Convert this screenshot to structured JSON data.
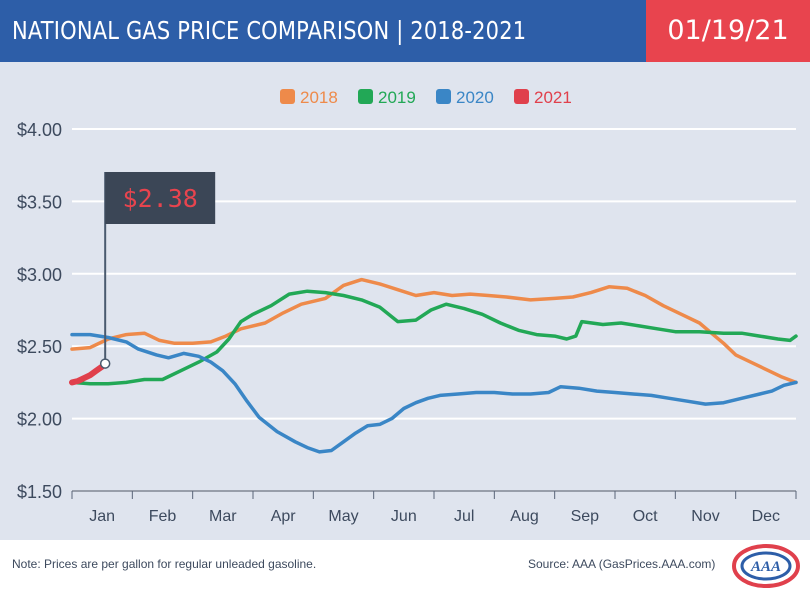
{
  "header": {
    "title": "NATIONAL GAS PRICE COMPARISON | 2018-2021",
    "date": "01/19/21"
  },
  "footer": {
    "note": "Note: Prices are per gallon for regular unleaded gasoline.",
    "source": "Source: AAA (GasPrices.AAA.com)",
    "logo_text": "AAA"
  },
  "colors": {
    "banner": "#2d5ea8",
    "date_box": "#e8444e",
    "panel": "#dfe4ee",
    "2018": "#ee8a4a",
    "2019": "#22a856",
    "2020": "#3a86c6",
    "2021": "#e0404c"
  },
  "chart_data": {
    "type": "line",
    "title": "",
    "xlabel": "",
    "ylabel": "",
    "ylim": [
      1.5,
      4.0
    ],
    "xlim": [
      0,
      12
    ],
    "grid": true,
    "legend_position": "top-center",
    "x_ticks": [
      "Jan",
      "Feb",
      "Mar",
      "Apr",
      "May",
      "Jun",
      "Jul",
      "Aug",
      "Sep",
      "Oct",
      "Nov",
      "Dec"
    ],
    "y_ticks": [
      "$1.50",
      "$2.00",
      "$2.50",
      "$3.00",
      "$3.50",
      "$4.00"
    ],
    "y_tick_values": [
      1.5,
      2.0,
      2.5,
      3.0,
      3.5,
      4.0
    ],
    "callout": {
      "label": "$2.38",
      "x": 0.55,
      "y": 2.38
    },
    "series": [
      {
        "name": "2018",
        "color": "#ee8a4a",
        "points": [
          [
            0,
            2.48
          ],
          [
            0.3,
            2.49
          ],
          [
            0.6,
            2.55
          ],
          [
            0.9,
            2.58
          ],
          [
            1.2,
            2.59
          ],
          [
            1.45,
            2.54
          ],
          [
            1.7,
            2.52
          ],
          [
            2.0,
            2.52
          ],
          [
            2.3,
            2.53
          ],
          [
            2.55,
            2.57
          ],
          [
            2.8,
            2.62
          ],
          [
            3.2,
            2.66
          ],
          [
            3.5,
            2.73
          ],
          [
            3.8,
            2.79
          ],
          [
            4.2,
            2.83
          ],
          [
            4.5,
            2.92
          ],
          [
            4.8,
            2.96
          ],
          [
            5.1,
            2.93
          ],
          [
            5.4,
            2.89
          ],
          [
            5.7,
            2.85
          ],
          [
            6.0,
            2.87
          ],
          [
            6.3,
            2.85
          ],
          [
            6.6,
            2.86
          ],
          [
            6.9,
            2.85
          ],
          [
            7.2,
            2.84
          ],
          [
            7.6,
            2.82
          ],
          [
            8.0,
            2.83
          ],
          [
            8.3,
            2.84
          ],
          [
            8.6,
            2.87
          ],
          [
            8.9,
            2.91
          ],
          [
            9.2,
            2.9
          ],
          [
            9.5,
            2.85
          ],
          [
            9.8,
            2.78
          ],
          [
            10.1,
            2.72
          ],
          [
            10.4,
            2.66
          ],
          [
            10.6,
            2.59
          ],
          [
            10.8,
            2.52
          ],
          [
            11.0,
            2.44
          ],
          [
            11.3,
            2.38
          ],
          [
            11.55,
            2.33
          ],
          [
            11.75,
            2.29
          ],
          [
            12.0,
            2.25
          ]
        ]
      },
      {
        "name": "2019",
        "color": "#22a856",
        "points": [
          [
            0,
            2.25
          ],
          [
            0.3,
            2.24
          ],
          [
            0.6,
            2.24
          ],
          [
            0.9,
            2.25
          ],
          [
            1.2,
            2.27
          ],
          [
            1.5,
            2.27
          ],
          [
            1.8,
            2.33
          ],
          [
            2.1,
            2.39
          ],
          [
            2.4,
            2.46
          ],
          [
            2.6,
            2.55
          ],
          [
            2.8,
            2.67
          ],
          [
            3.0,
            2.72
          ],
          [
            3.3,
            2.78
          ],
          [
            3.6,
            2.86
          ],
          [
            3.9,
            2.88
          ],
          [
            4.2,
            2.87
          ],
          [
            4.5,
            2.85
          ],
          [
            4.8,
            2.82
          ],
          [
            5.1,
            2.77
          ],
          [
            5.4,
            2.67
          ],
          [
            5.7,
            2.68
          ],
          [
            5.95,
            2.75
          ],
          [
            6.2,
            2.79
          ],
          [
            6.5,
            2.76
          ],
          [
            6.8,
            2.72
          ],
          [
            7.1,
            2.66
          ],
          [
            7.4,
            2.61
          ],
          [
            7.7,
            2.58
          ],
          [
            8.0,
            2.57
          ],
          [
            8.2,
            2.55
          ],
          [
            8.35,
            2.57
          ],
          [
            8.45,
            2.67
          ],
          [
            8.8,
            2.65
          ],
          [
            9.1,
            2.66
          ],
          [
            9.4,
            2.64
          ],
          [
            9.7,
            2.62
          ],
          [
            10.0,
            2.6
          ],
          [
            10.4,
            2.6
          ],
          [
            10.8,
            2.59
          ],
          [
            11.1,
            2.59
          ],
          [
            11.4,
            2.57
          ],
          [
            11.7,
            2.55
          ],
          [
            11.9,
            2.54
          ],
          [
            12.0,
            2.57
          ]
        ]
      },
      {
        "name": "2020",
        "color": "#3a86c6",
        "points": [
          [
            0,
            2.58
          ],
          [
            0.3,
            2.58
          ],
          [
            0.6,
            2.56
          ],
          [
            0.9,
            2.53
          ],
          [
            1.1,
            2.48
          ],
          [
            1.4,
            2.44
          ],
          [
            1.6,
            2.42
          ],
          [
            1.85,
            2.45
          ],
          [
            2.1,
            2.43
          ],
          [
            2.3,
            2.39
          ],
          [
            2.5,
            2.33
          ],
          [
            2.7,
            2.24
          ],
          [
            2.9,
            2.12
          ],
          [
            3.1,
            2.01
          ],
          [
            3.4,
            1.91
          ],
          [
            3.7,
            1.84
          ],
          [
            3.9,
            1.8
          ],
          [
            4.1,
            1.77
          ],
          [
            4.3,
            1.78
          ],
          [
            4.5,
            1.84
          ],
          [
            4.7,
            1.9
          ],
          [
            4.9,
            1.95
          ],
          [
            5.1,
            1.96
          ],
          [
            5.3,
            2.0
          ],
          [
            5.5,
            2.07
          ],
          [
            5.7,
            2.11
          ],
          [
            5.9,
            2.14
          ],
          [
            6.1,
            2.16
          ],
          [
            6.4,
            2.17
          ],
          [
            6.7,
            2.18
          ],
          [
            7.0,
            2.18
          ],
          [
            7.3,
            2.17
          ],
          [
            7.6,
            2.17
          ],
          [
            7.9,
            2.18
          ],
          [
            8.1,
            2.22
          ],
          [
            8.4,
            2.21
          ],
          [
            8.7,
            2.19
          ],
          [
            9.0,
            2.18
          ],
          [
            9.3,
            2.17
          ],
          [
            9.6,
            2.16
          ],
          [
            9.9,
            2.14
          ],
          [
            10.2,
            2.12
          ],
          [
            10.5,
            2.1
          ],
          [
            10.8,
            2.11
          ],
          [
            11.1,
            2.14
          ],
          [
            11.4,
            2.17
          ],
          [
            11.6,
            2.19
          ],
          [
            11.8,
            2.23
          ],
          [
            12.0,
            2.25
          ]
        ]
      },
      {
        "name": "2021",
        "color": "#e0404c",
        "points": [
          [
            0,
            2.25
          ],
          [
            0.1,
            2.26
          ],
          [
            0.2,
            2.28
          ],
          [
            0.3,
            2.3
          ],
          [
            0.4,
            2.33
          ],
          [
            0.5,
            2.36
          ],
          [
            0.55,
            2.38
          ]
        ]
      }
    ]
  }
}
